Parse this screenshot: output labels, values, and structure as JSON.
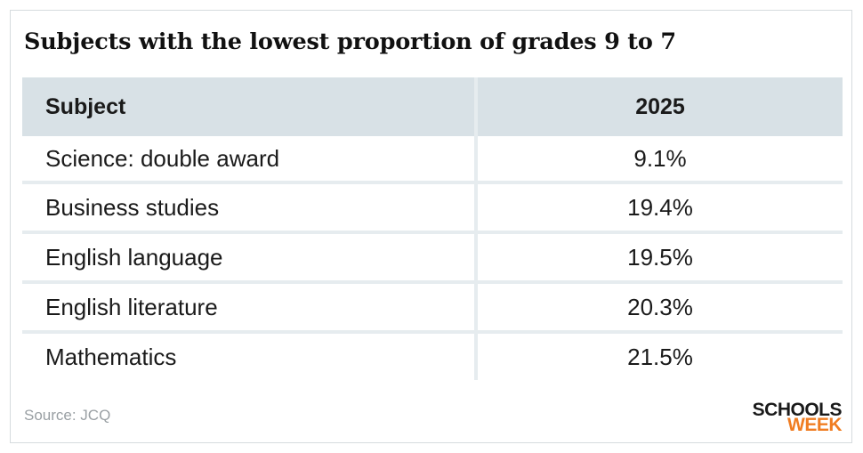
{
  "title": "Subjects with the lowest proportion of grades 9 to 7",
  "source": "Source: JCQ",
  "logo": {
    "line1": "SCHOOLS",
    "line2": "WEEK",
    "accent_color": "#f07d22"
  },
  "chart_data": {
    "type": "table",
    "title": "Subjects with the lowest proportion of grades 9 to 7",
    "columns": [
      "Subject",
      "2025"
    ],
    "rows": [
      {
        "subject": "Science: double award",
        "value": "9.1%"
      },
      {
        "subject": "Business studies",
        "value": "19.4%"
      },
      {
        "subject": "English language",
        "value": "19.5%"
      },
      {
        "subject": "English literature",
        "value": "20.3%"
      },
      {
        "subject": "Mathematics",
        "value": "21.5%"
      }
    ],
    "header_background": "#d8e1e6"
  }
}
